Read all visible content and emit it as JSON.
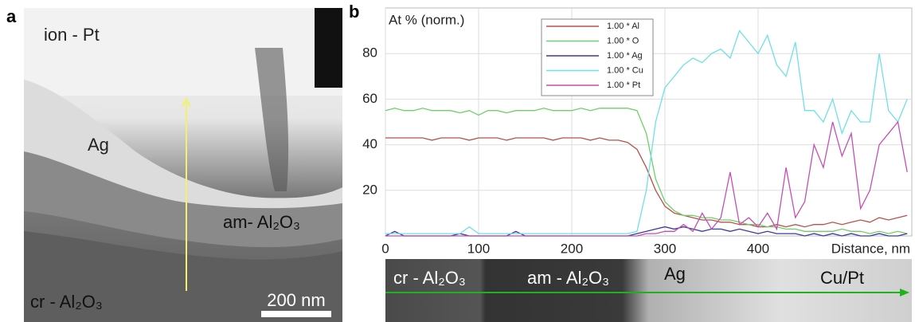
{
  "panel_a": {
    "label": "a",
    "texts": [
      "ion - Pt",
      "Ag",
      "am- Al₂O₃",
      "cr - Al₂O₃"
    ],
    "scale_bar": "200 nm"
  },
  "chart_data": {
    "type": "line",
    "panel_label": "b",
    "y_label": "At % (norm.)",
    "x_label": "Distance, nm",
    "x": [
      0,
      10,
      20,
      30,
      40,
      50,
      60,
      70,
      80,
      90,
      100,
      110,
      120,
      130,
      140,
      150,
      160,
      170,
      180,
      190,
      200,
      210,
      220,
      230,
      240,
      250,
      260,
      270,
      280,
      290,
      300,
      310,
      320,
      330,
      340,
      350,
      360,
      370,
      380,
      390,
      400,
      410,
      420,
      430,
      440,
      450,
      460,
      470,
      480,
      490,
      500,
      510,
      520,
      530,
      540,
      550,
      560
    ],
    "series": [
      {
        "name": "1.00 * Al",
        "color": "#b8524a",
        "values": [
          43,
          43,
          43,
          43,
          43,
          42,
          43,
          43,
          43,
          42,
          43,
          43,
          43,
          42,
          43,
          43,
          43,
          43,
          42,
          43,
          43,
          43,
          42,
          43,
          42,
          42,
          41,
          38,
          30,
          20,
          13,
          10,
          9,
          8,
          7,
          7,
          6,
          6,
          5,
          5,
          4,
          4,
          5,
          4,
          5,
          4,
          5,
          5,
          6,
          5,
          6,
          7,
          6,
          8,
          7,
          8,
          9
        ]
      },
      {
        "name": "1.00 * O",
        "color": "#6fcf6a",
        "values": [
          55,
          56,
          55,
          55,
          56,
          55,
          55,
          55,
          54,
          55,
          53,
          55,
          55,
          54,
          55,
          55,
          55,
          56,
          55,
          55,
          55,
          56,
          55,
          56,
          56,
          56,
          56,
          55,
          45,
          25,
          15,
          11,
          9,
          9,
          8,
          8,
          7,
          7,
          6,
          5,
          5,
          4,
          4,
          3,
          3,
          2,
          2,
          2,
          2,
          3,
          2,
          2,
          1,
          2,
          1,
          2,
          1
        ]
      },
      {
        "name": "1.00 * Ag",
        "color": "#3a3aa0",
        "values": [
          0,
          2,
          0,
          0,
          0,
          0,
          0,
          0,
          1,
          0,
          0,
          0,
          0,
          0,
          2,
          0,
          0,
          0,
          0,
          0,
          0,
          0,
          0,
          0,
          0,
          0,
          0,
          1,
          2,
          3,
          4,
          3,
          4,
          3,
          2,
          3,
          3,
          2,
          3,
          2,
          1,
          2,
          1,
          1,
          1,
          0,
          1,
          0,
          1,
          0,
          1,
          0,
          0,
          1,
          0,
          0,
          1
        ]
      },
      {
        "name": "1.00 * Cu",
        "color": "#6fe0e6",
        "values": [
          1,
          1,
          1,
          1,
          1,
          1,
          1,
          1,
          1,
          4,
          1,
          1,
          1,
          1,
          1,
          1,
          1,
          1,
          1,
          1,
          1,
          1,
          1,
          1,
          1,
          1,
          1,
          2,
          20,
          50,
          65,
          70,
          75,
          78,
          76,
          80,
          82,
          78,
          90,
          85,
          80,
          88,
          75,
          70,
          85,
          55,
          55,
          50,
          60,
          45,
          55,
          50,
          50,
          80,
          55,
          50,
          60
        ]
      },
      {
        "name": "1.00 * Pt",
        "color": "#c44fb4",
        "values": [
          0,
          0,
          0,
          0,
          0,
          0,
          0,
          0,
          0,
          0,
          0,
          0,
          0,
          0,
          0,
          0,
          0,
          0,
          0,
          0,
          0,
          0,
          0,
          0,
          0,
          0,
          0,
          0,
          1,
          1,
          2,
          2,
          5,
          2,
          10,
          3,
          8,
          28,
          5,
          8,
          4,
          10,
          3,
          30,
          8,
          15,
          40,
          30,
          50,
          35,
          45,
          12,
          20,
          40,
          45,
          50,
          28
        ]
      }
    ],
    "xlim": [
      0,
      565
    ],
    "ylim": [
      0,
      100
    ],
    "xticks": [
      0,
      100,
      200,
      300,
      400
    ],
    "yticks": [
      20,
      40,
      60,
      80
    ],
    "grid": true,
    "strip_labels": [
      "cr - Al₂O₃",
      "am - Al₂O₃",
      "Ag",
      "Cu/Pt"
    ]
  }
}
